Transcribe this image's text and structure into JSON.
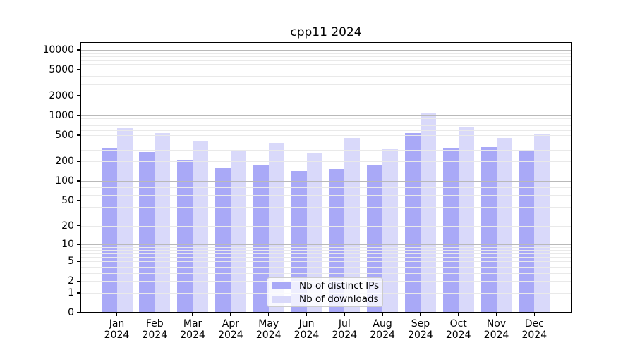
{
  "chart_data": {
    "type": "bar",
    "title": "cpp11 2024",
    "categories": [
      "Jan 2024",
      "Feb 2024",
      "Mar 2024",
      "Apr 2024",
      "May 2024",
      "Jun 2024",
      "Jul 2024",
      "Aug 2024",
      "Sep 2024",
      "Oct 2024",
      "Nov 2024",
      "Dec 2024"
    ],
    "series": [
      {
        "name": "Nb of distinct IPs",
        "color": "#a9a9f7",
        "values": [
          325,
          274,
          209,
          158,
          171,
          140,
          154,
          174,
          540,
          318,
          327,
          293
        ]
      },
      {
        "name": "Nb of downloads",
        "color": "#d9d9fa",
        "values": [
          636,
          540,
          408,
          293,
          382,
          265,
          450,
          303,
          1100,
          658,
          450,
          509
        ]
      }
    ],
    "xlabel": "",
    "ylabel": "",
    "yscale": "log1p",
    "ytick_labels": [
      0,
      1,
      2,
      5,
      10,
      20,
      50,
      100,
      200,
      500,
      1000,
      2000,
      5000,
      10000
    ],
    "ylim": [
      0,
      13000
    ],
    "grid": true,
    "legend_position": "lower center"
  },
  "colors": {
    "major_grid": "#b9b9b9",
    "minor_grid": "#e9e9e9",
    "axis": "#000000",
    "legend_border": "#cccccc",
    "text": "#000000"
  }
}
